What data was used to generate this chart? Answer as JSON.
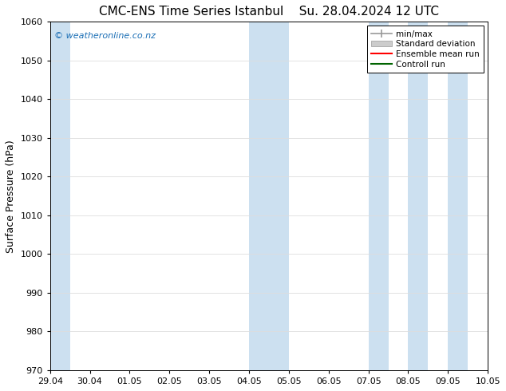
{
  "title_left": "CMC-ENS Time Series Istanbul",
  "title_right": "Su. 28.04.2024 12 UTC",
  "ylabel": "Surface Pressure (hPa)",
  "xlim": [
    0,
    11
  ],
  "ylim": [
    970,
    1060
  ],
  "yticks": [
    970,
    980,
    990,
    1000,
    1010,
    1020,
    1030,
    1040,
    1050,
    1060
  ],
  "xtick_labels": [
    "29.04",
    "30.04",
    "01.05",
    "02.05",
    "03.05",
    "04.05",
    "05.05",
    "06.05",
    "07.05",
    "08.05",
    "09.05",
    "10.05"
  ],
  "shaded_bands": [
    {
      "x_start": 0.0,
      "x_end": 0.5
    },
    {
      "x_start": 5.0,
      "x_end": 6.0
    },
    {
      "x_start": 8.0,
      "x_end": 8.5
    },
    {
      "x_start": 9.0,
      "x_end": 9.5
    },
    {
      "x_start": 10.0,
      "x_end": 10.5
    }
  ],
  "shade_color": "#cce0f0",
  "bg_color": "#ffffff",
  "watermark": "© weatheronline.co.nz",
  "watermark_color": "#1a6eb5",
  "legend_items": [
    {
      "label": "min/max",
      "color": "#999999"
    },
    {
      "label": "Standard deviation",
      "color": "#cccccc"
    },
    {
      "label": "Ensemble mean run",
      "color": "#ff0000"
    },
    {
      "label": "Controll run",
      "color": "#006400"
    }
  ],
  "title_fontsize": 11,
  "tick_fontsize": 8,
  "ylabel_fontsize": 9,
  "grid_color": "#dddddd",
  "spine_color": "#000000"
}
